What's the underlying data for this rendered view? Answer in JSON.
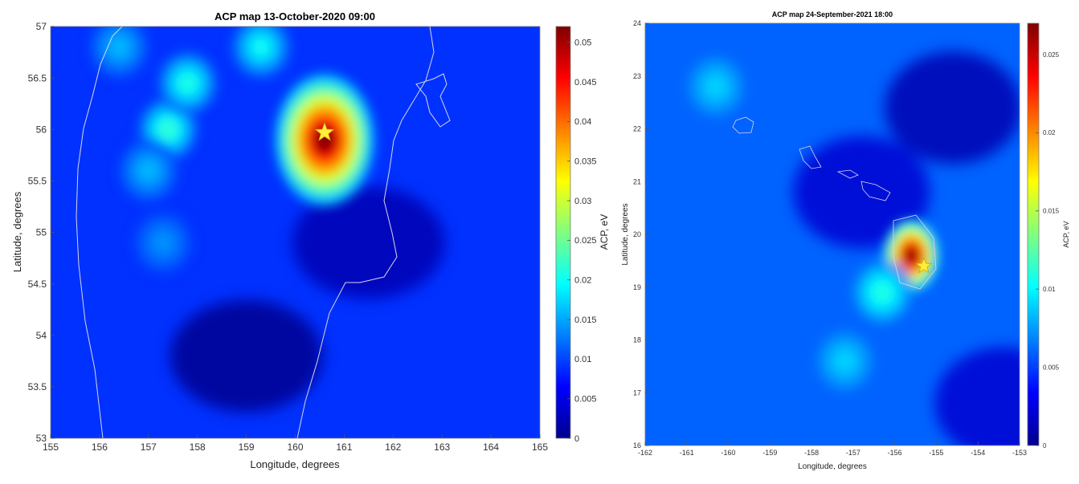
{
  "chart_data": [
    {
      "type": "heatmap",
      "title": "ACP map 13-October-2020 09:00",
      "xlabel": "Longitude, degrees",
      "ylabel": "Latitude, degrees",
      "colorbar_label": "ACP, eV",
      "xlim": [
        155,
        165
      ],
      "ylim": [
        53,
        57
      ],
      "clim": [
        0,
        0.052
      ],
      "xticks": [
        "155",
        "156",
        "157",
        "158",
        "159",
        "160",
        "161",
        "162",
        "163",
        "164",
        "165"
      ],
      "yticks": [
        "53",
        "53.5",
        "54",
        "54.5",
        "55",
        "55.5",
        "56",
        "56.5",
        "57"
      ],
      "cticks": [
        "0",
        "0.005",
        "0.01",
        "0.015",
        "0.02",
        "0.025",
        "0.03",
        "0.035",
        "0.04",
        "0.045",
        "0.05"
      ],
      "background_value": 0.009,
      "hotspots": [
        {
          "lon": 160.6,
          "lat": 55.9,
          "value": 0.052
        },
        {
          "lon": 157.4,
          "lat": 56.0,
          "value": 0.022
        },
        {
          "lon": 157.8,
          "lat": 56.45,
          "value": 0.021
        },
        {
          "lon": 156.4,
          "lat": 56.8,
          "value": 0.016
        },
        {
          "lon": 159.3,
          "lat": 56.8,
          "value": 0.02
        },
        {
          "lon": 157.0,
          "lat": 55.6,
          "value": 0.016
        },
        {
          "lon": 157.3,
          "lat": 54.9,
          "value": 0.014
        }
      ],
      "lows": [
        {
          "lon": 159.0,
          "lat": 53.8,
          "value": 0.0
        },
        {
          "lon": 161.5,
          "lat": 54.9,
          "value": 0.002
        }
      ],
      "marker": {
        "lon": 160.6,
        "lat": 55.97,
        "symbol": "star",
        "color": "#ffef3a"
      }
    },
    {
      "type": "heatmap",
      "title": "ACP map 24-September-2021 18:00",
      "xlabel": "Longitude, degrees",
      "ylabel": "Latitude, degrees",
      "colorbar_label": "ACP, eV",
      "xlim": [
        -162,
        -153
      ],
      "ylim": [
        16,
        24
      ],
      "clim": [
        0,
        0.027
      ],
      "xticks": [
        "-162",
        "-161",
        "-160",
        "-159",
        "-158",
        "-157",
        "-156",
        "-155",
        "-154",
        "-153"
      ],
      "yticks": [
        "16",
        "17",
        "18",
        "19",
        "20",
        "21",
        "22",
        "23",
        "24"
      ],
      "cticks": [
        "0",
        "0.005",
        "0.01",
        "0.015",
        "0.02",
        "0.025"
      ],
      "background_value": 0.006,
      "hotspots": [
        {
          "lon": -155.6,
          "lat": 19.6,
          "value": 0.027
        },
        {
          "lon": -156.3,
          "lat": 18.9,
          "value": 0.011
        },
        {
          "lon": -160.3,
          "lat": 22.8,
          "value": 0.009
        },
        {
          "lon": -157.2,
          "lat": 17.6,
          "value": 0.009
        }
      ],
      "lows": [
        {
          "lon": -154.6,
          "lat": 22.4,
          "value": 0.001
        },
        {
          "lon": -153.4,
          "lat": 16.8,
          "value": 0.002
        },
        {
          "lon": -156.8,
          "lat": 20.8,
          "value": 0.002
        }
      ],
      "marker": {
        "lon": -155.3,
        "lat": 19.4,
        "symbol": "star",
        "color": "#ffef3a"
      }
    }
  ]
}
